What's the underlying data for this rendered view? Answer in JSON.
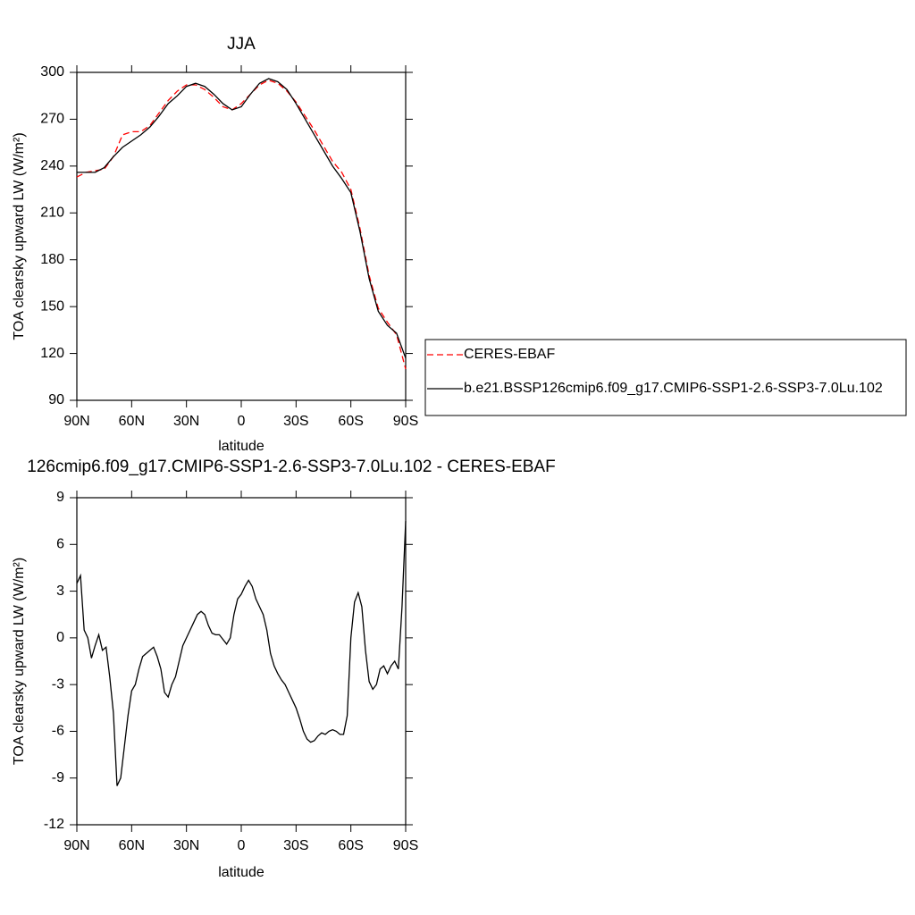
{
  "chart_data": [
    {
      "type": "line",
      "title": "JJA",
      "xlabel": "latitude",
      "ylabel": "TOA clearsky upward LW (W/m²)",
      "x": [
        90,
        85,
        80,
        75,
        70,
        65,
        60,
        55,
        50,
        45,
        40,
        35,
        30,
        25,
        20,
        15,
        10,
        5,
        0,
        -5,
        -10,
        -15,
        -20,
        -25,
        -30,
        -35,
        -40,
        -45,
        -50,
        -55,
        -60,
        -65,
        -70,
        -75,
        -80,
        -85,
        -90
      ],
      "xlim": [
        90,
        -90
      ],
      "xticks": [
        {
          "value": 90,
          "label": "90N"
        },
        {
          "value": 60,
          "label": "60N"
        },
        {
          "value": 30,
          "label": "30N"
        },
        0,
        {
          "value": -30,
          "label": "30S"
        },
        {
          "value": -60,
          "label": "60S"
        },
        {
          "value": -90,
          "label": "90S"
        }
      ],
      "ylim": [
        90,
        300
      ],
      "yticks": [
        90,
        120,
        150,
        180,
        210,
        240,
        270,
        300
      ],
      "legend": "right",
      "series": [
        {
          "name": "CERES-EBAF",
          "color": "#ff0000",
          "dashed": true,
          "values": [
            233,
            236,
            237,
            238,
            246,
            260,
            262,
            262,
            266,
            274,
            282,
            288,
            292,
            292,
            289,
            284,
            278,
            276,
            280,
            286,
            292,
            295,
            293,
            288,
            281,
            272,
            263,
            253,
            243,
            236,
            225,
            200,
            170,
            149,
            140,
            132,
            110
          ]
        },
        {
          "name": "b.e21.BSSP126cmip6.f09_g17.CMIP6-SSP1-2.6-SSP3-7.0Lu.102",
          "color": "#000000",
          "dashed": false,
          "values": [
            236,
            236,
            236,
            239,
            246,
            252,
            256,
            260,
            265,
            272,
            280,
            285,
            291,
            293,
            291,
            286,
            280,
            276,
            278,
            286,
            293,
            296,
            294,
            289,
            280,
            270,
            260,
            250,
            240,
            232,
            223,
            198,
            168,
            147,
            138,
            133,
            117
          ]
        }
      ]
    },
    {
      "type": "line",
      "title": "126cmip6.f09_g17.CMIP6-SSP1-2.6-SSP3-7.0Lu.102 - CERES-EBAF",
      "xlabel": "latitude",
      "ylabel": "TOA clearsky upward LW (W/m²)",
      "x": [
        90,
        88,
        86,
        84,
        82,
        80,
        78,
        76,
        74,
        72,
        70,
        68,
        66,
        64,
        62,
        60,
        58,
        56,
        54,
        52,
        50,
        48,
        46,
        44,
        42,
        40,
        38,
        36,
        34,
        32,
        30,
        28,
        26,
        24,
        22,
        20,
        18,
        16,
        14,
        12,
        10,
        8,
        6,
        4,
        2,
        0,
        -2,
        -4,
        -6,
        -8,
        -10,
        -12,
        -14,
        -16,
        -18,
        -20,
        -22,
        -24,
        -26,
        -28,
        -30,
        -32,
        -34,
        -36,
        -38,
        -40,
        -42,
        -44,
        -46,
        -48,
        -50,
        -52,
        -54,
        -56,
        -58,
        -60,
        -62,
        -64,
        -66,
        -68,
        -70,
        -72,
        -74,
        -76,
        -78,
        -80,
        -82,
        -84,
        -86,
        -88,
        -90
      ],
      "xlim": [
        90,
        -90
      ],
      "xticks": [
        {
          "value": 90,
          "label": "90N"
        },
        {
          "value": 60,
          "label": "60N"
        },
        {
          "value": 30,
          "label": "30N"
        },
        0,
        {
          "value": -30,
          "label": "30S"
        },
        {
          "value": -60,
          "label": "60S"
        },
        {
          "value": -90,
          "label": "90S"
        }
      ],
      "ylim": [
        -12,
        9
      ],
      "yticks": [
        -12,
        -9,
        -6,
        -3,
        0,
        3,
        6,
        9
      ],
      "series": [
        {
          "color": "#000000",
          "dashed": false,
          "values": [
            3.5,
            4.0,
            0.5,
            0,
            -1.3,
            -0.5,
            0.2,
            -0.8,
            -0.6,
            -2.5,
            -4.8,
            -9.5,
            -9.0,
            -7.0,
            -5.0,
            -3.4,
            -3.0,
            -2.0,
            -1.2,
            -1.0,
            -0.8,
            -0.6,
            -1.2,
            -2.0,
            -3.5,
            -3.8,
            -3.0,
            -2.5,
            -1.5,
            -0.5,
            0,
            0.5,
            1.0,
            1.5,
            1.7,
            1.5,
            0.8,
            0.3,
            0.2,
            0.2,
            -0.1,
            -0.4,
            0,
            1.5,
            2.5,
            2.8,
            3.3,
            3.7,
            3.3,
            2.5,
            2.0,
            1.5,
            0.5,
            -1.0,
            -1.8,
            -2.3,
            -2.7,
            -3.0,
            -3.5,
            -4.0,
            -4.5,
            -5.2,
            -6.0,
            -6.5,
            -6.7,
            -6.6,
            -6.3,
            -6.1,
            -6.2,
            -6.0,
            -5.9,
            -6.0,
            -6.2,
            -6.2,
            -5.0,
            0,
            2.3,
            2.9,
            2.0,
            -0.8,
            -2.8,
            -3.3,
            -3.0,
            -2.0,
            -1.8,
            -2.3,
            -1.8,
            -1.5,
            -2.0,
            2.0,
            7.5
          ]
        }
      ]
    }
  ]
}
